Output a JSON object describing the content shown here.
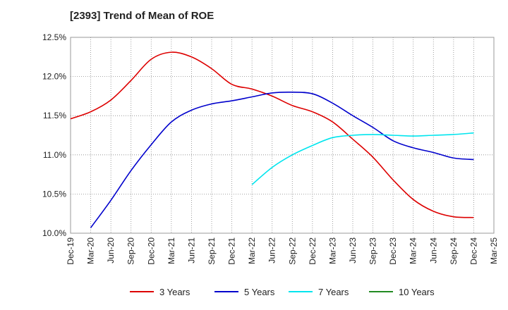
{
  "chart_data": {
    "type": "line",
    "title": "[2393]  Trend of Mean of ROE",
    "xlabel": "",
    "ylabel": "",
    "x": [
      "Dec-19",
      "Mar-20",
      "Jun-20",
      "Sep-20",
      "Dec-20",
      "Mar-21",
      "Jun-21",
      "Sep-21",
      "Dec-21",
      "Mar-22",
      "Jun-22",
      "Sep-22",
      "Dec-22",
      "Mar-23",
      "Jun-23",
      "Sep-23",
      "Dec-23",
      "Mar-24",
      "Jun-24",
      "Sep-24",
      "Dec-24",
      "Mar-25"
    ],
    "ylim": [
      10.0,
      12.5
    ],
    "yticks": [
      "10.0%",
      "10.5%",
      "11.0%",
      "11.5%",
      "12.0%",
      "12.5%"
    ],
    "grid": true,
    "legend_position": "bottom",
    "series": [
      {
        "name": "3 Years",
        "color": "#dd0000",
        "values": [
          11.46,
          11.55,
          11.7,
          11.95,
          12.22,
          12.31,
          12.25,
          12.1,
          11.9,
          11.84,
          11.75,
          11.63,
          11.55,
          11.42,
          11.2,
          10.97,
          10.68,
          10.43,
          10.28,
          10.21,
          10.2,
          null
        ]
      },
      {
        "name": "5 Years",
        "color": "#0000cc",
        "values": [
          null,
          10.07,
          10.42,
          10.8,
          11.13,
          11.42,
          11.57,
          11.65,
          11.69,
          11.74,
          11.79,
          11.8,
          11.78,
          11.66,
          11.5,
          11.35,
          11.18,
          11.09,
          11.03,
          10.96,
          10.94,
          null
        ]
      },
      {
        "name": "7 Years",
        "color": "#00e5ee",
        "values": [
          null,
          null,
          null,
          null,
          null,
          null,
          null,
          null,
          null,
          10.62,
          10.84,
          11.0,
          11.12,
          11.22,
          11.25,
          11.26,
          11.25,
          11.24,
          11.25,
          11.26,
          11.28,
          null
        ]
      },
      {
        "name": "10 Years",
        "color": "#228b22",
        "values": [
          null,
          null,
          null,
          null,
          null,
          null,
          null,
          null,
          null,
          null,
          null,
          null,
          null,
          null,
          null,
          null,
          null,
          null,
          null,
          null,
          null,
          null
        ]
      }
    ]
  }
}
